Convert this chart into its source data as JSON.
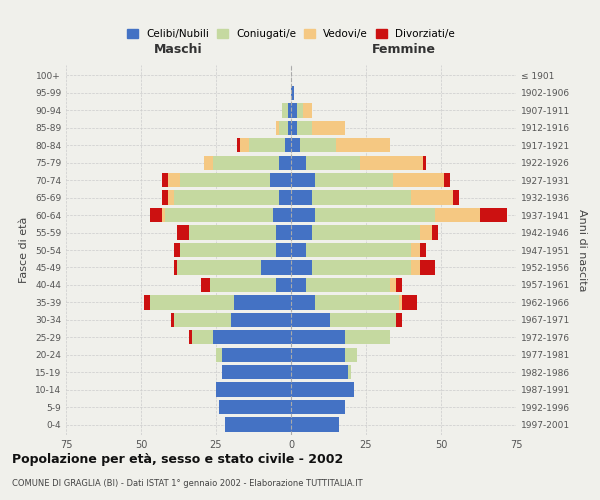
{
  "age_groups": [
    "0-4",
    "5-9",
    "10-14",
    "15-19",
    "20-24",
    "25-29",
    "30-34",
    "35-39",
    "40-44",
    "45-49",
    "50-54",
    "55-59",
    "60-64",
    "65-69",
    "70-74",
    "75-79",
    "80-84",
    "85-89",
    "90-94",
    "95-99",
    "100+"
  ],
  "birth_years": [
    "1997-2001",
    "1992-1996",
    "1987-1991",
    "1982-1986",
    "1977-1981",
    "1972-1976",
    "1967-1971",
    "1962-1966",
    "1957-1961",
    "1952-1956",
    "1947-1951",
    "1942-1946",
    "1937-1941",
    "1932-1936",
    "1927-1931",
    "1922-1926",
    "1917-1921",
    "1912-1916",
    "1907-1911",
    "1902-1906",
    "≤ 1901"
  ],
  "maschi": {
    "celibe": [
      22,
      24,
      25,
      23,
      23,
      26,
      20,
      19,
      5,
      10,
      5,
      5,
      6,
      4,
      7,
      4,
      2,
      1,
      1,
      0,
      0
    ],
    "coniugato": [
      0,
      0,
      0,
      0,
      2,
      7,
      19,
      28,
      22,
      28,
      32,
      29,
      36,
      35,
      30,
      22,
      12,
      3,
      2,
      0,
      0
    ],
    "vedovo": [
      0,
      0,
      0,
      0,
      0,
      0,
      0,
      0,
      0,
      0,
      0,
      0,
      1,
      2,
      4,
      3,
      3,
      1,
      0,
      0,
      0
    ],
    "divorziato": [
      0,
      0,
      0,
      0,
      0,
      1,
      1,
      2,
      3,
      1,
      2,
      4,
      4,
      2,
      2,
      0,
      1,
      0,
      0,
      0,
      0
    ]
  },
  "femmine": {
    "nubile": [
      16,
      18,
      21,
      19,
      18,
      18,
      13,
      8,
      5,
      7,
      5,
      7,
      8,
      7,
      8,
      5,
      3,
      2,
      2,
      1,
      0
    ],
    "coniugata": [
      0,
      0,
      0,
      1,
      4,
      15,
      22,
      28,
      28,
      33,
      35,
      36,
      40,
      33,
      26,
      18,
      12,
      5,
      2,
      0,
      0
    ],
    "vedova": [
      0,
      0,
      0,
      0,
      0,
      0,
      0,
      1,
      2,
      3,
      3,
      4,
      15,
      14,
      17,
      21,
      18,
      11,
      3,
      0,
      0
    ],
    "divorziata": [
      0,
      0,
      0,
      0,
      0,
      0,
      2,
      5,
      2,
      5,
      2,
      2,
      9,
      2,
      2,
      1,
      0,
      0,
      0,
      0,
      0
    ]
  },
  "colors": {
    "celibe": "#4472c4",
    "coniugato": "#c5d9a0",
    "vedovo": "#f5c882",
    "divorziato": "#cc1111"
  },
  "xlim": 75,
  "title": "Popolazione per età, sesso e stato civile - 2002",
  "subtitle": "COMUNE DI GRAGLIA (BI) - Dati ISTAT 1° gennaio 2002 - Elaborazione TUTTITALIA.IT",
  "ylabel_left": "Fasce di età",
  "ylabel_right": "Anni di nascita",
  "xlabel_left": "Maschi",
  "xlabel_right": "Femmine",
  "legend_labels": [
    "Celibi/Nubili",
    "Coniugati/e",
    "Vedovi/e",
    "Divorziati/e"
  ],
  "bg_color": "#f0f0eb"
}
